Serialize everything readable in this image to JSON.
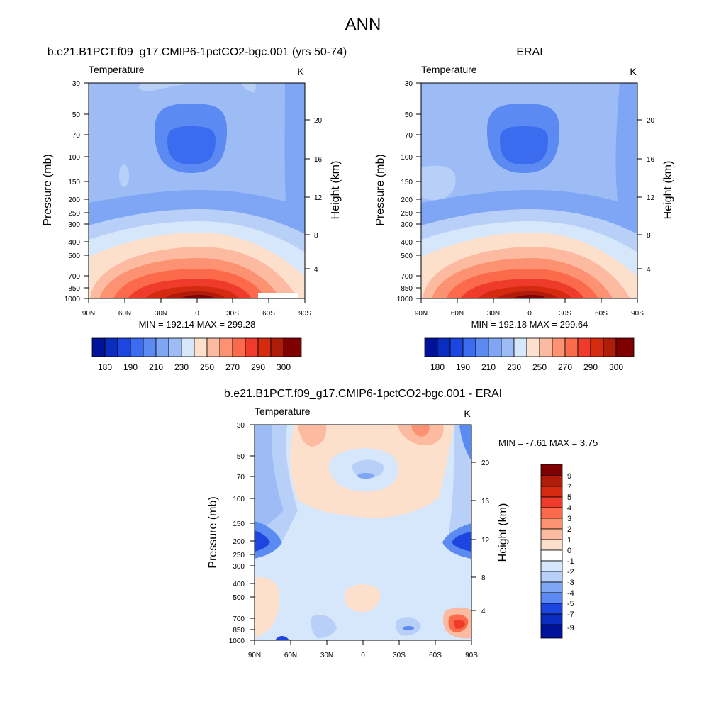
{
  "page": {
    "title": "ANN"
  },
  "chart_data": [
    {
      "type": "heatmap",
      "id": "model",
      "title": "b.e21.B1PCT.f09_g17.CMIP6-1pctCO2-bgc.001 (yrs 50-74)",
      "left_label": "Temperature",
      "units": "K",
      "ylabel": "Pressure (mb)",
      "y2label": "Height (km)",
      "x_ticks": [
        "90N",
        "60N",
        "30N",
        "0",
        "30S",
        "60S",
        "90S"
      ],
      "y_ticks": [
        "30",
        "50",
        "70",
        "100",
        "150",
        "200",
        "250",
        "300",
        "400",
        "500",
        "700",
        "850",
        "1000"
      ],
      "y2_ticks": [
        "20",
        "16",
        "12",
        "8",
        "4"
      ],
      "stats": "MIN = 192.14  MAX = 299.28",
      "min": 192.14,
      "max": 299.28,
      "colorbar": {
        "levels": [
          180,
          190,
          200,
          210,
          220,
          230,
          240,
          250,
          260,
          270,
          280,
          290,
          300
        ],
        "labels": [
          "180",
          "190",
          "210",
          "230",
          "250",
          "270",
          "290",
          "300"
        ]
      }
    },
    {
      "type": "heatmap",
      "id": "obs",
      "title": "ERAI",
      "left_label": "Temperature",
      "units": "K",
      "ylabel": "Pressure (mb)",
      "y2label": "Height (km)",
      "x_ticks": [
        "90N",
        "60N",
        "30N",
        "0",
        "30S",
        "60S",
        "90S"
      ],
      "y_ticks": [
        "30",
        "50",
        "70",
        "100",
        "150",
        "200",
        "250",
        "300",
        "400",
        "500",
        "700",
        "850",
        "1000"
      ],
      "y2_ticks": [
        "20",
        "16",
        "12",
        "8",
        "4"
      ],
      "stats": "MIN = 192.18  MAX = 299.64",
      "min": 192.18,
      "max": 299.64,
      "colorbar": {
        "levels": [
          180,
          190,
          200,
          210,
          220,
          230,
          240,
          250,
          260,
          270,
          280,
          290,
          300
        ],
        "labels": [
          "180",
          "190",
          "210",
          "230",
          "250",
          "270",
          "290",
          "300"
        ]
      }
    },
    {
      "type": "heatmap",
      "id": "diff",
      "title": "b.e21.B1PCT.f09_g17.CMIP6-1pctCO2-bgc.001 - ERAI",
      "left_label": "Temperature",
      "units": "K",
      "ylabel": "Pressure (mb)",
      "y2label": "Height (km)",
      "x_ticks": [
        "90N",
        "60N",
        "30N",
        "0",
        "30S",
        "60S",
        "90S"
      ],
      "y_ticks": [
        "30",
        "50",
        "70",
        "100",
        "150",
        "200",
        "250",
        "300",
        "400",
        "500",
        "700",
        "850",
        "1000"
      ],
      "y2_ticks": [
        "20",
        "16",
        "12",
        "8",
        "4"
      ],
      "stats": "MIN =  -7.61  MAX =   3.75",
      "min": -7.61,
      "max": 3.75,
      "colorbar": {
        "levels": [
          9,
          7,
          5,
          4,
          3,
          2,
          1,
          0,
          -1,
          -2,
          -3,
          -4,
          -5,
          -7,
          -9
        ],
        "labels": [
          "9",
          "7",
          "5",
          "4",
          "3",
          "2",
          "1",
          "0",
          "-1",
          "-2",
          "-3",
          "-4",
          "-5",
          "-7",
          "-9"
        ]
      }
    }
  ],
  "colors": {
    "warm": [
      "#fde0cc",
      "#fcbba1",
      "#fc9272",
      "#fb6a4a",
      "#ef3b2c",
      "#d42a10",
      "#b01c0a",
      "#7f0000"
    ],
    "cool": [
      "#d6e6fb",
      "#b8d0f8",
      "#9dbcf6",
      "#7fa6f5",
      "#5b8bf2",
      "#3b6cf0",
      "#1d46e0",
      "#0a2dc0",
      "#00129a"
    ]
  }
}
